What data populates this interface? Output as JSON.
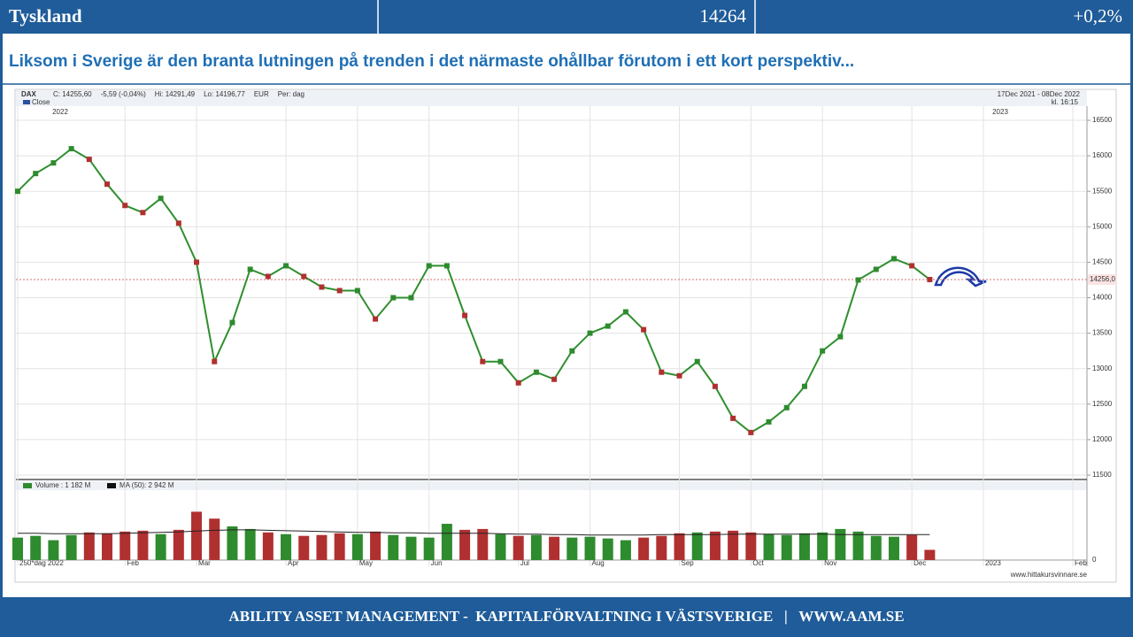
{
  "header": {
    "title": "Tyskland",
    "value": "14264",
    "change": "+0,2%"
  },
  "subtitle": "Liksom i Sverige är den branta lutningen på trenden i det närmaste ohållbar förutom i ett kort perspektiv...",
  "footer": "ABILITY ASSET MANAGEMENT -  KAPITALFÖRVALTNING I VÄSTSVERIGE   |   WWW.AAM.SE",
  "chart_data": {
    "type": "line",
    "instrument": "DAX",
    "info": [
      "C: 14255,60",
      "-5,59 (-0,04%)",
      "Hi: 14291,49",
      "Lo: 14196,77",
      "EUR",
      "Per: dag"
    ],
    "series_label": "Close",
    "period": "17Dec 2021 - 08Dec 2022",
    "time": "kl. 16:15",
    "year_labels": [
      "2022",
      "2023"
    ],
    "last_label": "14256,0",
    "source": "www.hittakursvinnare.se",
    "color": "#2f8f2f",
    "up_color": "#2e8b2e",
    "down_color": "#b03030",
    "grid": true,
    "categories": [
      "250*dag 2022",
      null,
      null,
      null,
      null,
      null,
      "Feb",
      null,
      null,
      null,
      "Mar",
      null,
      null,
      null,
      null,
      "Apr",
      null,
      null,
      null,
      "May",
      null,
      null,
      null,
      "Jun",
      null,
      null,
      null,
      null,
      "Jul",
      null,
      null,
      null,
      "Aug",
      null,
      null,
      null,
      null,
      "Sep",
      null,
      null,
      null,
      "Oct",
      null,
      null,
      null,
      "Nov",
      null,
      null,
      null,
      null,
      "Dec",
      null,
      null,
      null,
      "2023",
      null,
      null,
      null,
      null,
      "Feb"
    ],
    "values": [
      15500,
      15750,
      15900,
      16100,
      15950,
      15600,
      15300,
      15200,
      15400,
      15050,
      14500,
      13100,
      13650,
      14400,
      14300,
      14450,
      14300,
      14150,
      14100,
      14100,
      13700,
      14000,
      14000,
      14450,
      14450,
      13750,
      13100,
      13100,
      12800,
      12950,
      12850,
      13250,
      13500,
      13600,
      13800,
      13550,
      12950,
      12900,
      13100,
      12750,
      12300,
      12100,
      12250,
      12450,
      12750,
      13250,
      13450,
      14250,
      14400,
      14550,
      14450,
      14256,
      null,
      null,
      null,
      null,
      null,
      null,
      null,
      null
    ],
    "ylim": [
      11500,
      16500
    ],
    "yticks": [
      11500,
      12000,
      12500,
      13000,
      13500,
      14000,
      14500,
      15000,
      15500,
      16000,
      16500
    ],
    "volume_legend": [
      "Volume : 1 182 M",
      "MA (50): 2 942 M"
    ],
    "volume": [
      2600,
      2800,
      2300,
      2900,
      3200,
      3100,
      3300,
      3400,
      3000,
      3500,
      5600,
      4800,
      3900,
      3600,
      3200,
      3000,
      2800,
      2900,
      3100,
      3000,
      3300,
      2900,
      2700,
      2600,
      4200,
      3500,
      3600,
      3000,
      2800,
      2900,
      2700,
      2600,
      2700,
      2500,
      2300,
      2600,
      2800,
      3100,
      3200,
      3300,
      3400,
      3200,
      3000,
      2900,
      3100,
      3200,
      3600,
      3300,
      2800,
      2700,
      2900,
      1182,
      null,
      null,
      null,
      null,
      null,
      null,
      null,
      null
    ],
    "volume_ma": [
      3100,
      3100,
      3050,
      3050,
      3050,
      3050,
      3100,
      3150,
      3200,
      3250,
      3350,
      3450,
      3500,
      3500,
      3450,
      3400,
      3350,
      3300,
      3250,
      3200,
      3200,
      3150,
      3150,
      3100,
      3100,
      3100,
      3100,
      3050,
      3000,
      3000,
      2950,
      2950,
      2900,
      2900,
      2900,
      2900,
      2950,
      2950,
      2950,
      2950,
      3000,
      3000,
      3000,
      3000,
      3000,
      3000,
      2950,
      2950,
      2950,
      2950,
      2950,
      2942,
      null,
      null,
      null,
      null,
      null,
      null,
      null,
      null
    ],
    "volume_ylim": [
      0,
      8000
    ],
    "volume_yticks": [
      0
    ]
  }
}
